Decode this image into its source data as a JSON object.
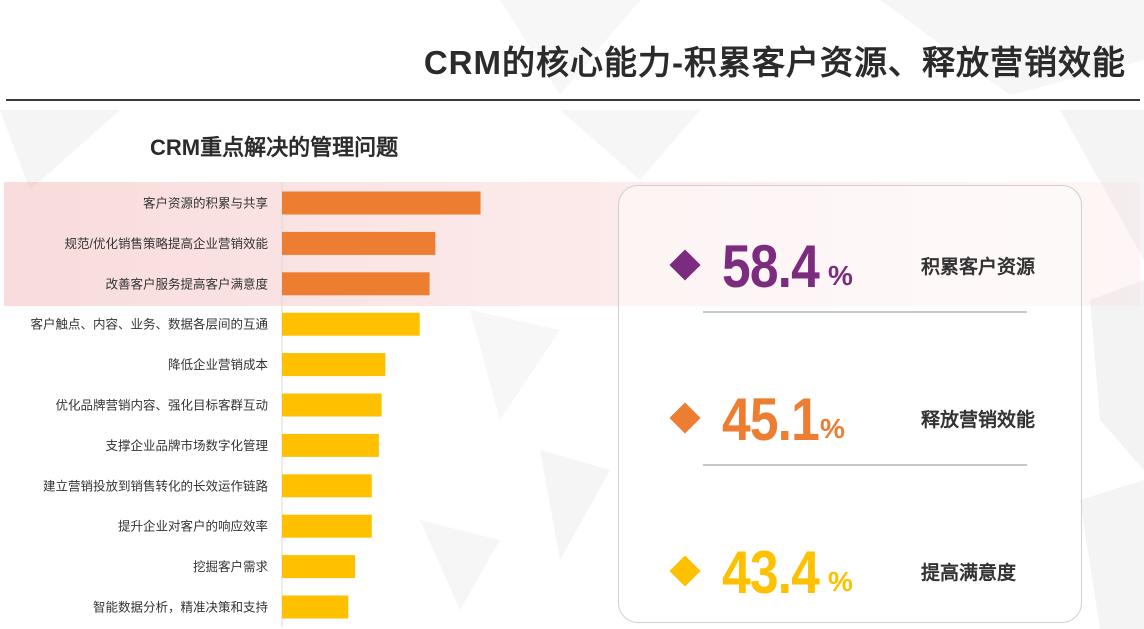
{
  "page": {
    "title": "CRM的核心能力-积累客户资源、释放营销效能"
  },
  "colors": {
    "orange": "#ED7D31",
    "yellow": "#FFC000",
    "purple": "#7B2C7E"
  },
  "chart_data": {
    "type": "bar",
    "orientation": "horizontal",
    "title": "CRM重点解决的管理问题",
    "categories": [
      "客户资源的积累与共享",
      "规范/优化销售策略提高企业营销效能",
      "改善客户服务提高客户满意度",
      "客户触点、内容、业务、数据各层间的互通",
      "降低企业营销成本",
      "优化品牌营销内容、强化目标客群互动",
      "支撑企业品牌市场数字化管理",
      "建立营销投放到销售转化的长效运作链路",
      "提升企业对客户的响应效率",
      "挖掘客户需求",
      "智能数据分析，精准决策和支持"
    ],
    "values": [
      58.4,
      45.1,
      43.4,
      40.5,
      30.4,
      29.3,
      28.5,
      26.4,
      26.4,
      21.5,
      19.5
    ],
    "bar_colors": [
      "#ED7D31",
      "#ED7D31",
      "#ED7D31",
      "#FFC000",
      "#FFC000",
      "#FFC000",
      "#FFC000",
      "#FFC000",
      "#FFC000",
      "#FFC000",
      "#FFC000"
    ],
    "highlighted_categories": 3,
    "xlim": [
      0,
      100
    ],
    "xlabel": "",
    "ylabel": "",
    "grid": false
  },
  "stats": [
    {
      "value": "58.4",
      "unit": "%",
      "label": "积累客户资源",
      "color": "#7B2C7E"
    },
    {
      "value": "45.1",
      "unit": "%",
      "label": "释放营销效能",
      "color": "#ED7D31"
    },
    {
      "value": "43.4",
      "unit": "%",
      "label": "提高满意度",
      "color": "#FFC000"
    }
  ]
}
